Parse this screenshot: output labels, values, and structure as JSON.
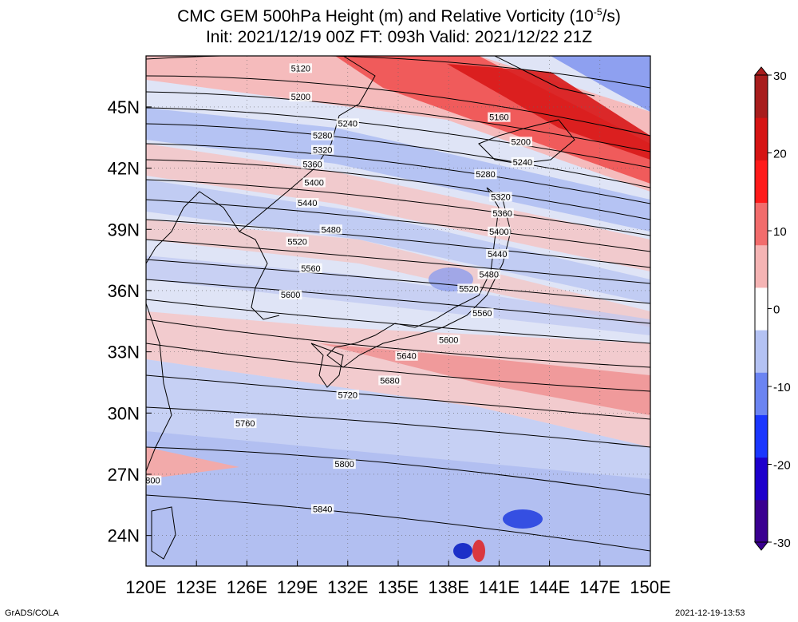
{
  "header": {
    "title_prefix": "CMC GEM 500hPa Height (m) and Relative Vorticity (10",
    "title_sup": "-5",
    "title_suffix": "/s)",
    "subtitle": "Init: 2021/12/19 00Z  FT: 093h  Valid: 2021/12/22 21Z"
  },
  "map": {
    "lon_range": [
      120,
      150
    ],
    "lat_range": [
      22.5,
      47.5
    ],
    "lon_ticks": [
      "120E",
      "123E",
      "126E",
      "129E",
      "132E",
      "135E",
      "138E",
      "141E",
      "144E",
      "147E",
      "150E"
    ],
    "lat_ticks": [
      "24N",
      "27N",
      "30N",
      "33N",
      "36N",
      "39N",
      "42N",
      "45N"
    ],
    "contour_labels": [
      {
        "text": "5120",
        "lon": 129.2,
        "lat": 46.9
      },
      {
        "text": "5200",
        "lon": 129.2,
        "lat": 45.5
      },
      {
        "text": "5240",
        "lon": 132.0,
        "lat": 44.2
      },
      {
        "text": "5160",
        "lon": 141.0,
        "lat": 44.5
      },
      {
        "text": "5280",
        "lon": 130.5,
        "lat": 43.6
      },
      {
        "text": "5200",
        "lon": 142.3,
        "lat": 43.3
      },
      {
        "text": "5320",
        "lon": 130.5,
        "lat": 42.9
      },
      {
        "text": "5240",
        "lon": 142.4,
        "lat": 42.3
      },
      {
        "text": "5360",
        "lon": 129.9,
        "lat": 42.2
      },
      {
        "text": "5280",
        "lon": 140.2,
        "lat": 41.7
      },
      {
        "text": "5400",
        "lon": 130.0,
        "lat": 41.3
      },
      {
        "text": "5320",
        "lon": 141.1,
        "lat": 40.6
      },
      {
        "text": "5440",
        "lon": 129.6,
        "lat": 40.3
      },
      {
        "text": "5360",
        "lon": 141.2,
        "lat": 39.8
      },
      {
        "text": "5480",
        "lon": 131.0,
        "lat": 39.0
      },
      {
        "text": "5400",
        "lon": 141.0,
        "lat": 38.9
      },
      {
        "text": "5520",
        "lon": 129.0,
        "lat": 38.4
      },
      {
        "text": "5440",
        "lon": 140.9,
        "lat": 37.8
      },
      {
        "text": "5560",
        "lon": 129.8,
        "lat": 37.1
      },
      {
        "text": "5480",
        "lon": 140.4,
        "lat": 36.8
      },
      {
        "text": "5520",
        "lon": 139.2,
        "lat": 36.1
      },
      {
        "text": "5600",
        "lon": 128.6,
        "lat": 35.8
      },
      {
        "text": "5560",
        "lon": 140.0,
        "lat": 34.9
      },
      {
        "text": "5600",
        "lon": 138.0,
        "lat": 33.6
      },
      {
        "text": "5640",
        "lon": 135.5,
        "lat": 32.8
      },
      {
        "text": "5680",
        "lon": 134.5,
        "lat": 31.6
      },
      {
        "text": "5720",
        "lon": 132.0,
        "lat": 30.9
      },
      {
        "text": "5760",
        "lon": 125.9,
        "lat": 29.5
      },
      {
        "text": "5800",
        "lon": 131.8,
        "lat": 27.5
      },
      {
        "text": "800",
        "lon": 120.4,
        "lat": 26.7
      },
      {
        "text": "5840",
        "lon": 130.5,
        "lat": 25.3
      }
    ]
  },
  "colorbar": {
    "ticks": [
      "30",
      "20",
      "10",
      "0",
      "-10",
      "-20",
      "-30"
    ],
    "colors": [
      "#3a0090",
      "#1d00cc",
      "#1a36ff",
      "#6b84f2",
      "#b4c2f3",
      "#ffffff",
      "#f5b4b4",
      "#f26c6c",
      "#ff1a1a",
      "#d61414",
      "#a81d1d"
    ]
  },
  "footer": {
    "credit": "GrADS/COLA",
    "timestamp": "2021-12-19-13:53"
  }
}
